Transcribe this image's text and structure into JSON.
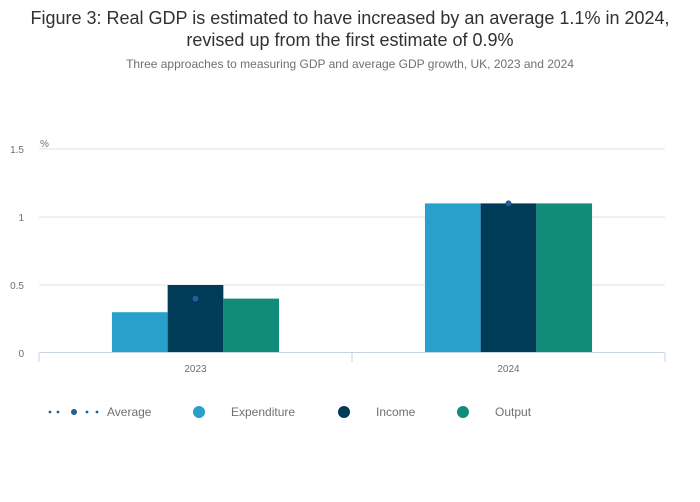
{
  "figure": {
    "title": "Figure 3: Real GDP is estimated to have increased by an average 1.1% in 2024, revised up from the first estimate of 0.9%",
    "subtitle": "Three approaches to measuring GDP and average GDP growth, UK, 2023 and 2024"
  },
  "chart_data": {
    "type": "bar",
    "title": "Figure 3: Real GDP is estimated to have increased by an average 1.1% in 2024, revised up from the first estimate of 0.9%",
    "subtitle": "Three approaches to measuring GDP and average GDP growth, UK, 2023 and 2024",
    "xlabel": "",
    "ylabel": "%",
    "categories": [
      "2023",
      "2024"
    ],
    "ylim": [
      0,
      1.5
    ],
    "yticks": [
      0,
      0.5,
      1,
      1.5
    ],
    "ytick_labels": [
      "0",
      "0.5",
      "1",
      "1.5"
    ],
    "grid": true,
    "legend_position": "bottom-left",
    "series": [
      {
        "name": "Expenditure",
        "kind": "bar",
        "color": "#27a0cc",
        "values": [
          0.3,
          1.1
        ]
      },
      {
        "name": "Income",
        "kind": "bar",
        "color": "#003c57",
        "values": [
          0.5,
          1.1
        ]
      },
      {
        "name": "Output",
        "kind": "bar",
        "color": "#118c7b",
        "values": [
          0.4,
          1.1
        ]
      },
      {
        "name": "Average",
        "kind": "dot",
        "color": "#206095",
        "values": [
          0.4,
          1.1
        ]
      }
    ]
  },
  "legend": {
    "items": [
      {
        "label": "Average",
        "icon": "dotted-line-marker-icon",
        "color": "#206095"
      },
      {
        "label": "Expenditure",
        "icon": "circle-icon",
        "color": "#27a0cc"
      },
      {
        "label": "Income",
        "icon": "circle-icon",
        "color": "#003c57"
      },
      {
        "label": "Output",
        "icon": "circle-icon",
        "color": "#118c7b"
      }
    ]
  }
}
